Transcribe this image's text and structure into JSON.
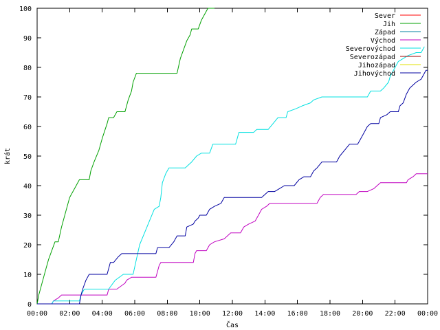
{
  "chart_data": {
    "type": "line",
    "title": "",
    "xlabel": "Čas",
    "ylabel": "krát",
    "xlim": [
      0,
      24
    ],
    "ylim": [
      0,
      100
    ],
    "x_ticks": [
      0,
      2,
      4,
      6,
      8,
      10,
      12,
      14,
      16,
      18,
      20,
      22,
      24
    ],
    "x_tick_labels": [
      "00:00",
      "02:00",
      "04:00",
      "06:00",
      "08:00",
      "10:00",
      "12:00",
      "14:00",
      "16:00",
      "18:00",
      "20:00",
      "22:00",
      "00:00"
    ],
    "y_ticks": [
      0,
      10,
      20,
      30,
      40,
      50,
      60,
      70,
      80,
      90,
      100
    ],
    "grid": false,
    "legend_position": "top-right",
    "series": [
      {
        "name": "Sever",
        "color": "#ff0000",
        "points": []
      },
      {
        "name": "Jih",
        "color": "#00a000",
        "points": [
          [
            0,
            0
          ],
          [
            0.1,
            3
          ],
          [
            0.3,
            7
          ],
          [
            0.5,
            11
          ],
          [
            0.7,
            15
          ],
          [
            0.9,
            18
          ],
          [
            1.1,
            21
          ],
          [
            1.3,
            21
          ],
          [
            1.5,
            26
          ],
          [
            1.8,
            32
          ],
          [
            2.0,
            36
          ],
          [
            2.4,
            40
          ],
          [
            2.6,
            42
          ],
          [
            3.2,
            42
          ],
          [
            3.3,
            45
          ],
          [
            3.5,
            48
          ],
          [
            3.8,
            52
          ],
          [
            4.0,
            56
          ],
          [
            4.3,
            61
          ],
          [
            4.4,
            63
          ],
          [
            4.7,
            63
          ],
          [
            4.9,
            65
          ],
          [
            5.4,
            65
          ],
          [
            5.6,
            69
          ],
          [
            5.8,
            72
          ],
          [
            5.9,
            75
          ],
          [
            6.1,
            78
          ],
          [
            8.6,
            78
          ],
          [
            8.8,
            83
          ],
          [
            9.0,
            86
          ],
          [
            9.2,
            89
          ],
          [
            9.4,
            91
          ],
          [
            9.5,
            93
          ],
          [
            9.9,
            93
          ],
          [
            10.1,
            96
          ],
          [
            10.4,
            99
          ],
          [
            10.5,
            100
          ],
          [
            10.9,
            100
          ]
        ]
      },
      {
        "name": "Západ",
        "color": "#0080a0",
        "points": []
      },
      {
        "name": "Východ",
        "color": "#c000c0",
        "points": [
          [
            0,
            0
          ],
          [
            0.9,
            0
          ],
          [
            1.0,
            1
          ],
          [
            1.3,
            2
          ],
          [
            1.5,
            3
          ],
          [
            4.3,
            3
          ],
          [
            4.4,
            5
          ],
          [
            4.9,
            5
          ],
          [
            5.4,
            7
          ],
          [
            5.5,
            8
          ],
          [
            5.8,
            9
          ],
          [
            7.3,
            9
          ],
          [
            7.5,
            13
          ],
          [
            7.6,
            14
          ],
          [
            9.6,
            14
          ],
          [
            9.7,
            17
          ],
          [
            9.8,
            18
          ],
          [
            10.4,
            18
          ],
          [
            10.6,
            20
          ],
          [
            10.9,
            21
          ],
          [
            11.5,
            22
          ],
          [
            11.9,
            24
          ],
          [
            12.5,
            24
          ],
          [
            12.7,
            26
          ],
          [
            13.0,
            27
          ],
          [
            13.4,
            28
          ],
          [
            13.6,
            30
          ],
          [
            13.8,
            32
          ],
          [
            14.1,
            33
          ],
          [
            14.3,
            34
          ],
          [
            17.2,
            34
          ],
          [
            17.4,
            36
          ],
          [
            17.6,
            37
          ],
          [
            19.6,
            37
          ],
          [
            19.8,
            38
          ],
          [
            20.3,
            38
          ],
          [
            20.7,
            39
          ],
          [
            20.9,
            40
          ],
          [
            21.1,
            41
          ],
          [
            22.7,
            41
          ],
          [
            22.8,
            42
          ],
          [
            23.1,
            43
          ],
          [
            23.3,
            44
          ],
          [
            24.0,
            44
          ]
        ]
      },
      {
        "name": "Severovýchod",
        "color": "#00e0e0",
        "points": [
          [
            0,
            0
          ],
          [
            0.9,
            0
          ],
          [
            1.0,
            1
          ],
          [
            2.0,
            1
          ],
          [
            2.6,
            1
          ],
          [
            2.7,
            3
          ],
          [
            2.9,
            5
          ],
          [
            4.4,
            5
          ],
          [
            4.8,
            8
          ],
          [
            5.3,
            10
          ],
          [
            5.9,
            10
          ],
          [
            6.3,
            20
          ],
          [
            6.6,
            24
          ],
          [
            6.9,
            28
          ],
          [
            7.2,
            32
          ],
          [
            7.5,
            33
          ],
          [
            7.6,
            36
          ],
          [
            7.7,
            41
          ],
          [
            7.9,
            44
          ],
          [
            8.1,
            46
          ],
          [
            9.1,
            46
          ],
          [
            9.3,
            47
          ],
          [
            9.5,
            48
          ],
          [
            9.8,
            50
          ],
          [
            10.1,
            51
          ],
          [
            10.6,
            51
          ],
          [
            10.8,
            54
          ],
          [
            12.2,
            54
          ],
          [
            12.4,
            58
          ],
          [
            13.3,
            58
          ],
          [
            13.5,
            59
          ],
          [
            14.2,
            59
          ],
          [
            14.5,
            61
          ],
          [
            14.8,
            63
          ],
          [
            15.3,
            63
          ],
          [
            15.4,
            65
          ],
          [
            15.9,
            66
          ],
          [
            16.3,
            67
          ],
          [
            16.8,
            68
          ],
          [
            17.0,
            69
          ],
          [
            17.5,
            70
          ],
          [
            20.3,
            70
          ],
          [
            20.5,
            72
          ],
          [
            21.1,
            72
          ],
          [
            21.3,
            73
          ],
          [
            21.6,
            75
          ],
          [
            21.7,
            77
          ],
          [
            22.0,
            80
          ],
          [
            22.2,
            82
          ],
          [
            22.8,
            84
          ],
          [
            23.3,
            85
          ],
          [
            23.6,
            85
          ],
          [
            23.8,
            87
          ]
        ]
      },
      {
        "name": "Severozápad",
        "color": "#a00000",
        "points": []
      },
      {
        "name": "Jihozápad",
        "color": "#e0e000",
        "points": []
      },
      {
        "name": "Jihovýchod",
        "color": "#0000a0",
        "points": [
          [
            0,
            0
          ],
          [
            2.6,
            0
          ],
          [
            2.7,
            3
          ],
          [
            2.8,
            5
          ],
          [
            3.0,
            8
          ],
          [
            3.2,
            10
          ],
          [
            4.3,
            10
          ],
          [
            4.5,
            14
          ],
          [
            4.7,
            14
          ],
          [
            5.0,
            16
          ],
          [
            5.2,
            17
          ],
          [
            7.3,
            17
          ],
          [
            7.4,
            19
          ],
          [
            8.1,
            19
          ],
          [
            8.4,
            21
          ],
          [
            8.6,
            23
          ],
          [
            9.1,
            23
          ],
          [
            9.2,
            26
          ],
          [
            9.6,
            27
          ],
          [
            9.7,
            28
          ],
          [
            9.9,
            29
          ],
          [
            10.0,
            30
          ],
          [
            10.4,
            30
          ],
          [
            10.6,
            32
          ],
          [
            10.9,
            33
          ],
          [
            11.3,
            34
          ],
          [
            11.5,
            36
          ],
          [
            13.8,
            36
          ],
          [
            14.2,
            38
          ],
          [
            14.6,
            38
          ],
          [
            14.9,
            39
          ],
          [
            15.2,
            40
          ],
          [
            15.8,
            40
          ],
          [
            16.1,
            42
          ],
          [
            16.4,
            43
          ],
          [
            16.8,
            43
          ],
          [
            17.0,
            45
          ],
          [
            17.2,
            46
          ],
          [
            17.5,
            48
          ],
          [
            18.4,
            48
          ],
          [
            18.6,
            50
          ],
          [
            18.9,
            52
          ],
          [
            19.2,
            54
          ],
          [
            19.7,
            54
          ],
          [
            19.9,
            56
          ],
          [
            20.1,
            58
          ],
          [
            20.3,
            60
          ],
          [
            20.5,
            61
          ],
          [
            21.0,
            61
          ],
          [
            21.1,
            63
          ],
          [
            21.5,
            64
          ],
          [
            21.7,
            65
          ],
          [
            22.2,
            65
          ],
          [
            22.3,
            67
          ],
          [
            22.5,
            68
          ],
          [
            22.7,
            71
          ],
          [
            22.9,
            73
          ],
          [
            23.1,
            74
          ],
          [
            23.3,
            75
          ],
          [
            23.6,
            76
          ],
          [
            23.7,
            77
          ],
          [
            23.9,
            79
          ],
          [
            24.0,
            79
          ]
        ]
      }
    ]
  }
}
